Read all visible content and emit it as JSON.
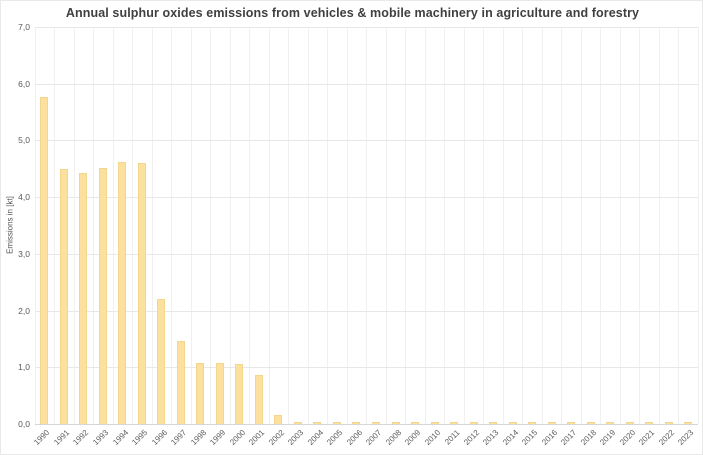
{
  "chart_data": {
    "type": "bar",
    "title": "Annual sulphur oxides emissions from vehicles & mobile machinery in agriculture and forestry",
    "xlabel": "",
    "ylabel": "Emissions in [kt]",
    "categories": [
      "1990",
      "1991",
      "1992",
      "1993",
      "1994",
      "1995",
      "1996",
      "1997",
      "1998",
      "1999",
      "2000",
      "2001",
      "2002",
      "2003",
      "2004",
      "2005",
      "2006",
      "2007",
      "2008",
      "2009",
      "2010",
      "2011",
      "2012",
      "2013",
      "2014",
      "2015",
      "2016",
      "2017",
      "2018",
      "2019",
      "2020",
      "2021",
      "2022",
      "2023"
    ],
    "values": [
      5.76,
      4.49,
      4.43,
      4.51,
      4.62,
      4.6,
      2.21,
      1.47,
      1.07,
      1.07,
      1.06,
      0.86,
      0.15,
      0.04,
      0.04,
      0.04,
      0.04,
      0.04,
      0.04,
      0.04,
      0.04,
      0.04,
      0.04,
      0.04,
      0.04,
      0.04,
      0.04,
      0.04,
      0.04,
      0.04,
      0.04,
      0.04,
      0.04,
      0.04
    ],
    "ylim": [
      0,
      7
    ],
    "ytick_step": 1,
    "ytick_labels": [
      "0,0",
      "1,0",
      "2,0",
      "3,0",
      "4,0",
      "5,0",
      "6,0",
      "7,0"
    ],
    "grid": true,
    "vertical_grid": true,
    "legend": "none",
    "bar_color": "#FBE19D",
    "bar_border_color": "#F3D58D"
  }
}
